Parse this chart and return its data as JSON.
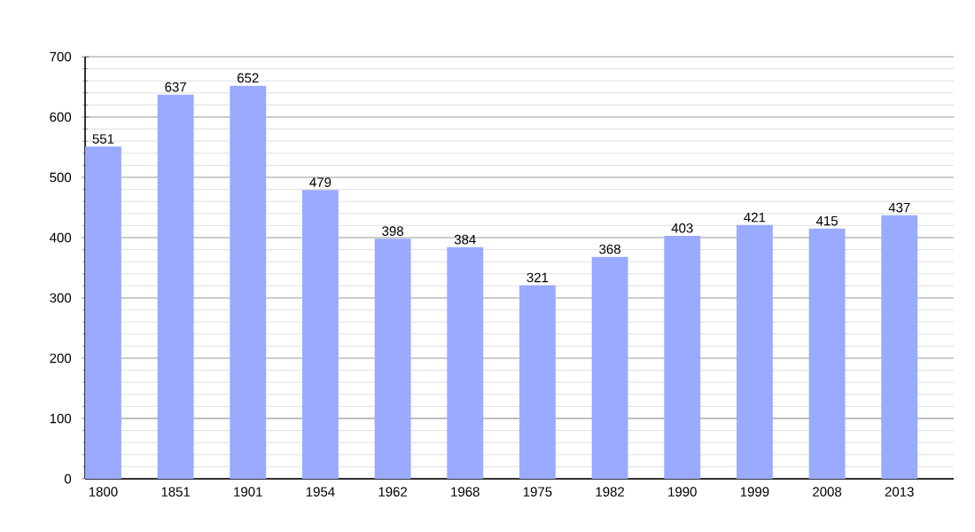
{
  "chart_data": {
    "type": "bar",
    "categories": [
      "1800",
      "1851",
      "1901",
      "1954",
      "1962",
      "1968",
      "1975",
      "1982",
      "1990",
      "1999",
      "2008",
      "2013"
    ],
    "values": [
      551,
      637,
      652,
      479,
      398,
      384,
      321,
      368,
      403,
      421,
      415,
      437
    ],
    "color": "#99aaff",
    "ylim": [
      0,
      700
    ],
    "yticks": [
      0,
      100,
      200,
      300,
      400,
      500,
      600,
      700
    ],
    "grid": "y",
    "data_labels": true
  }
}
